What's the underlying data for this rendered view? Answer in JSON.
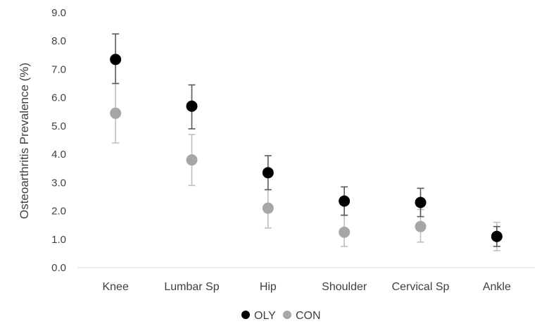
{
  "chart_data": {
    "type": "scatter",
    "ylabel": "Osteoarthritis Prevalence (%)",
    "xlabel": "",
    "ylim": [
      0,
      9
    ],
    "ytick_step": 1,
    "ytick_labels": [
      "0.0",
      "1.0",
      "2.0",
      "3.0",
      "4.0",
      "5.0",
      "6.0",
      "7.0",
      "8.0",
      "9.0"
    ],
    "categories": [
      "Knee",
      "Lumbar Sp",
      "Hip",
      "Shoulder",
      "Cervical Sp",
      "Ankle"
    ],
    "grid": false,
    "legend_position": "bottom-center",
    "series": [
      {
        "name": "OLY",
        "color": "#000000",
        "values": [
          7.35,
          5.7,
          3.35,
          2.35,
          2.3,
          1.1
        ],
        "error_low": [
          6.5,
          4.9,
          2.75,
          1.85,
          1.8,
          0.75
        ],
        "error_high": [
          8.25,
          6.45,
          3.95,
          2.85,
          2.8,
          1.45
        ]
      },
      {
        "name": "CON",
        "color": "#a6a6a6",
        "values": [
          5.45,
          3.8,
          2.1,
          1.25,
          1.45,
          1.1
        ],
        "error_low": [
          4.4,
          2.9,
          1.4,
          0.75,
          0.9,
          0.6
        ],
        "error_high": [
          6.5,
          4.7,
          2.75,
          1.85,
          2.05,
          1.6
        ]
      }
    ]
  }
}
